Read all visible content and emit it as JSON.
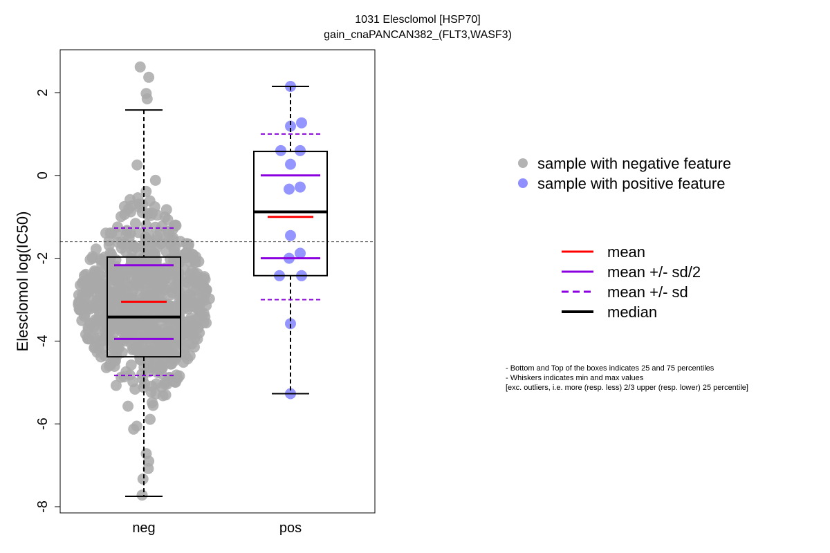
{
  "chart_data": {
    "type": "box",
    "title": "1031 Elesclomol [HSP70]",
    "subtitle": "gain_cnaPANCAN382_(FLT3,WASF3)",
    "ylabel": "Elesclomol log(IC50)",
    "xlabel": "",
    "categories": [
      "neg",
      "pos"
    ],
    "ylim": [
      -8,
      3
    ],
    "yticks": [
      -8,
      -6,
      -4,
      -2,
      0,
      2
    ],
    "ytick_labels": [
      "-8",
      "-6",
      "-4",
      "-2",
      "0",
      "2"
    ],
    "reference_line": -1.6,
    "boxes": [
      {
        "name": "neg",
        "color": "#a9a9a9",
        "min": -7.75,
        "q1": -4.38,
        "median": -3.42,
        "q3": -1.97,
        "max": 1.58,
        "mean": -3.05,
        "mean_minus_half_sd": -3.95,
        "mean_plus_half_sd": -2.17,
        "mean_minus_sd": -4.83,
        "mean_plus_sd": -1.27
      },
      {
        "name": "pos",
        "color": "#8f8fff",
        "min": -5.27,
        "q1": -2.42,
        "median": -0.88,
        "q3": 0.58,
        "max": 2.15,
        "mean": -1.0,
        "mean_minus_half_sd": -2.0,
        "mean_plus_half_sd": 0.0,
        "mean_minus_sd": -3.0,
        "mean_plus_sd": 1.0
      }
    ],
    "pos_points": [
      2.15,
      1.27,
      1.19,
      0.6,
      0.6,
      0.27,
      -0.28,
      -0.33,
      -1.45,
      -1.88,
      -2.0,
      -2.42,
      -2.42,
      -3.58,
      -5.27
    ],
    "neg_points_count": 800,
    "legend_points": [
      {
        "label": "sample with negative feature",
        "color": "#b3b3b3"
      },
      {
        "label": "sample with positive feature",
        "color": "#8f8fff"
      }
    ],
    "legend_lines": [
      {
        "label": "mean",
        "color": "#ff0000",
        "style": "solid"
      },
      {
        "label": "mean +/- sd/2",
        "color": "#8b00e0",
        "style": "solid"
      },
      {
        "label": "mean +/- sd",
        "color": "#8b00e0",
        "style": "dashed"
      },
      {
        "label": "median",
        "color": "#000000",
        "style": "solid-thick"
      }
    ],
    "notes": [
      "- Bottom and Top of the boxes indicates 25 and 75 percentiles",
      "- Whiskers indicates min and max values",
      "[exc. outliers, i.e. more (resp. less) 2/3 upper (resp. lower) 25 percentile]"
    ],
    "grid": false
  }
}
